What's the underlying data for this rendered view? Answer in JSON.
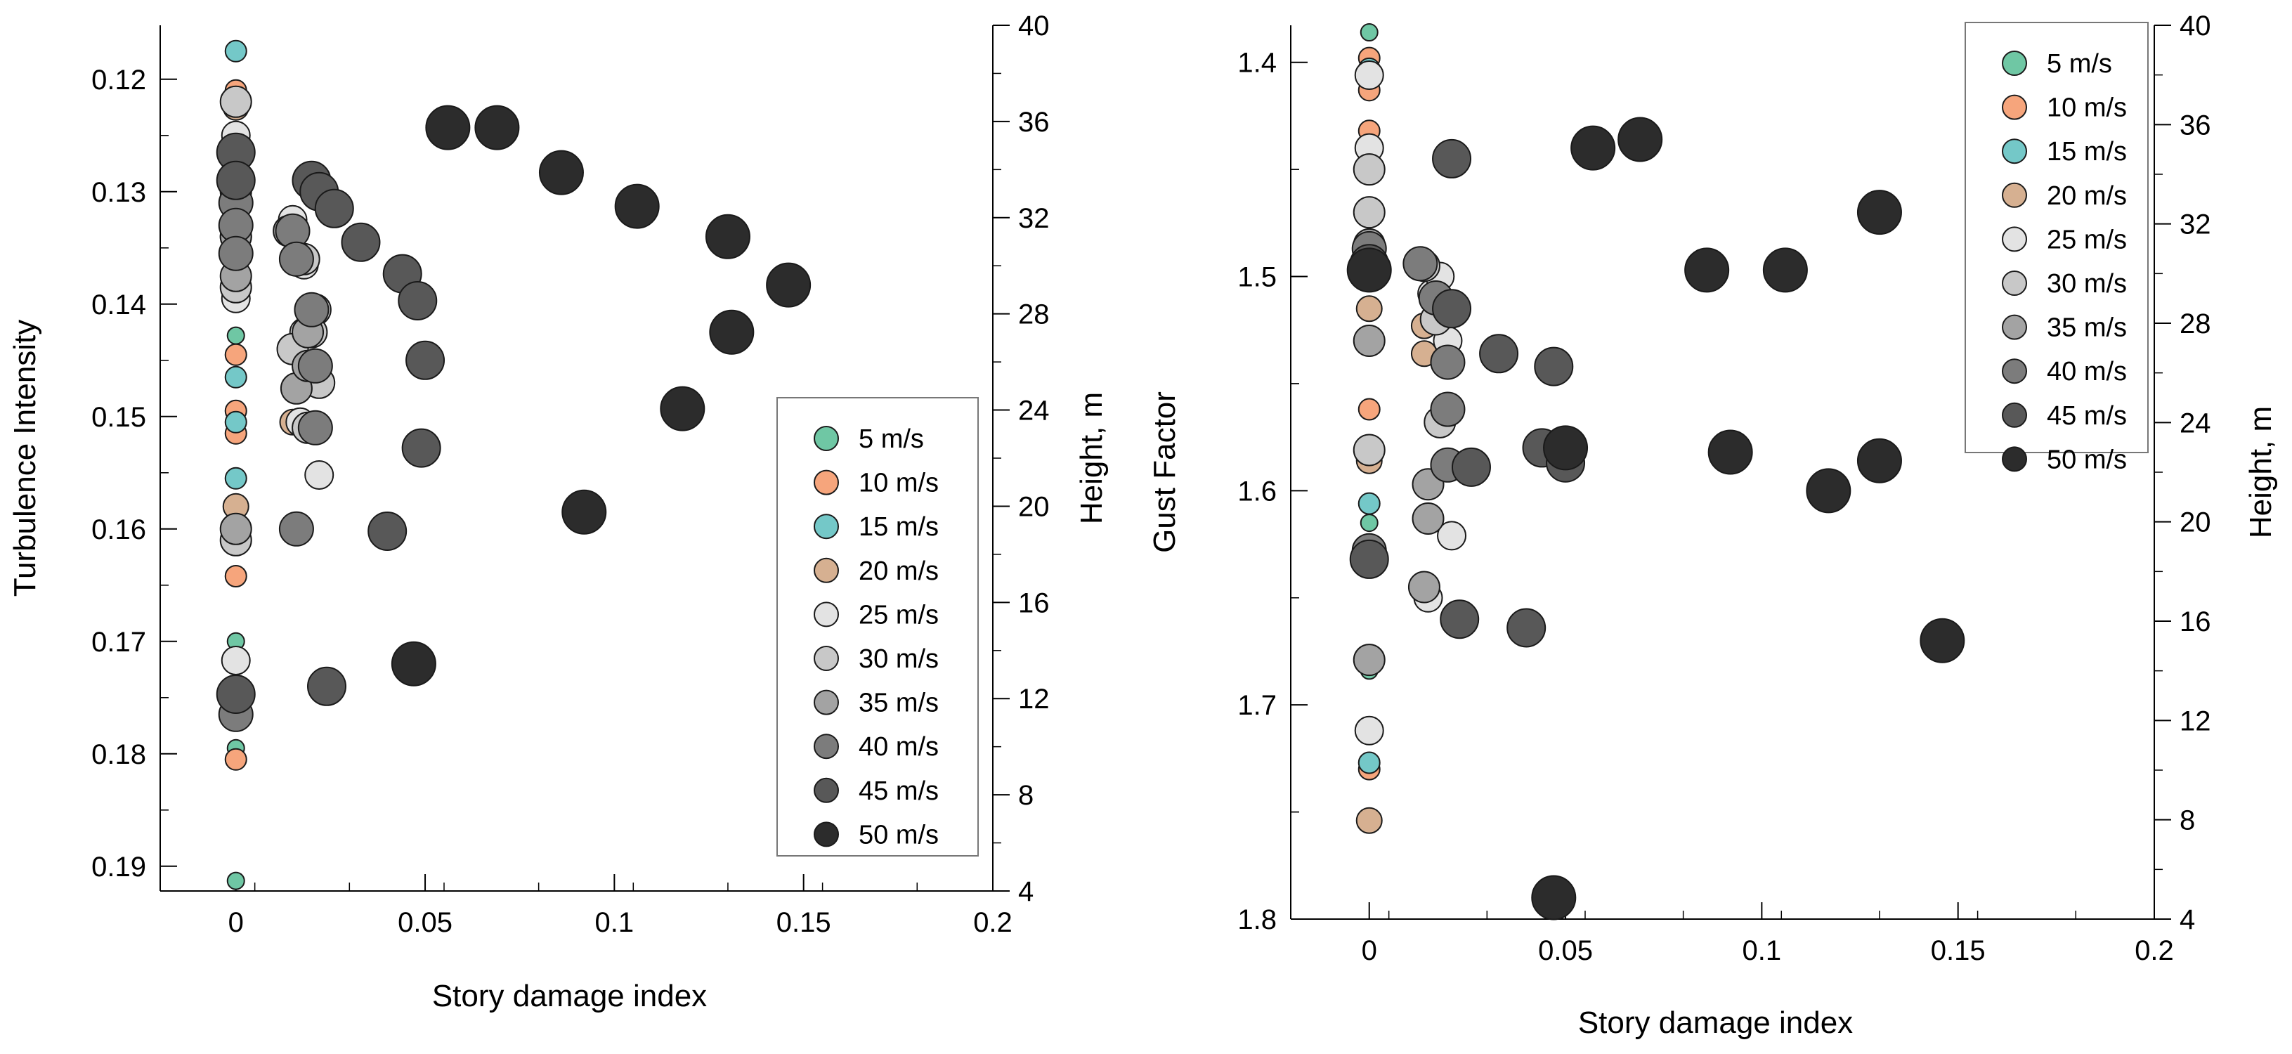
{
  "figure": {
    "panels": 2
  },
  "legend_series": [
    {
      "name": "5 m/s",
      "color": "#6fc7a4"
    },
    {
      "name": "10 m/s",
      "color": "#f6a57c"
    },
    {
      "name": "15 m/s",
      "color": "#74c8c8"
    },
    {
      "name": "20 m/s",
      "color": "#d6b091"
    },
    {
      "name": "25 m/s",
      "color": "#e3e3e3"
    },
    {
      "name": "30 m/s",
      "color": "#c8c8c8"
    },
    {
      "name": "35 m/s",
      "color": "#a3a3a3"
    },
    {
      "name": "40 m/s",
      "color": "#7c7c7c"
    },
    {
      "name": "45 m/s",
      "color": "#585858"
    },
    {
      "name": "50 m/s",
      "color": "#2c2c2c"
    }
  ],
  "chart_data": [
    {
      "type": "scatter",
      "title": "",
      "xlabel": "Story damage index",
      "ylabel": "Turbulence Intensity",
      "y2label": "Height, m",
      "xlim": [
        -0.02,
        0.2
      ],
      "ylim": [
        0.1152,
        0.1922
      ],
      "y_inverted": true,
      "y2lim": [
        4,
        40
      ],
      "xticks": [
        0,
        0.05,
        0.1,
        0.15,
        0.2
      ],
      "xtick_labels": [
        "0",
        "0.05",
        "0.1",
        "0.15",
        "0.2"
      ],
      "yticks": [
        0.12,
        0.13,
        0.14,
        0.15,
        0.16,
        0.17,
        0.18,
        0.19
      ],
      "ytick_labels": [
        "0.12",
        "0.13",
        "0.14",
        "0.15",
        "0.16",
        "0.17",
        "0.18",
        "0.19"
      ],
      "y2ticks": [
        4,
        8,
        12,
        16,
        20,
        24,
        28,
        32,
        36,
        40
      ],
      "y2tick_labels": [
        "4",
        "8",
        "12",
        "16",
        "20",
        "24",
        "28",
        "32",
        "36",
        "40"
      ],
      "legend_position": "lower-right",
      "series": [
        {
          "name": "5 m/s",
          "x": [
            0,
            0,
            0,
            0,
            0,
            0
          ],
          "y": [
            0.1175,
            0.1428,
            0.15,
            0.17,
            0.1795,
            0.1913
          ]
        },
        {
          "name": "10 m/s",
          "x": [
            0,
            0,
            0,
            0,
            0,
            0,
            0
          ],
          "y": [
            0.121,
            0.1445,
            0.1495,
            0.1515,
            0.158,
            0.1642,
            0.1805
          ]
        },
        {
          "name": "15 m/s",
          "x": [
            0,
            0,
            0,
            0,
            0,
            0
          ],
          "y": [
            0.1175,
            0.125,
            0.1465,
            0.1505,
            0.1555,
            0.1605
          ]
        },
        {
          "name": "20 m/s",
          "x": [
            0,
            0,
            0,
            0,
            0.015,
            0
          ],
          "y": [
            0.1225,
            0.134,
            0.137,
            0.158,
            0.1505,
            0.1755
          ]
        },
        {
          "name": "25 m/s",
          "x": [
            0,
            0,
            0,
            0,
            0.015,
            0.015,
            0.018,
            0.021,
            0.018,
            0.022,
            0.017,
            0
          ],
          "y": [
            0.122,
            0.125,
            0.13,
            0.1395,
            0.1325,
            0.144,
            0.1365,
            0.1405,
            0.1425,
            0.1552,
            0.1505,
            0.1717
          ]
        },
        {
          "name": "30 m/s",
          "x": [
            0,
            0,
            0,
            0,
            0.015,
            0.018,
            0.022,
            0.021,
            0.02,
            0.019,
            0
          ],
          "y": [
            0.122,
            0.129,
            0.134,
            0.1385,
            0.144,
            0.136,
            0.147,
            0.1405,
            0.1425,
            0.151,
            0.161
          ]
        },
        {
          "name": "35 m/s",
          "x": [
            0,
            0,
            0,
            0.014,
            0.016,
            0.016,
            0.019,
            0.019,
            0
          ],
          "y": [
            0.13,
            0.134,
            0.1375,
            0.1335,
            0.136,
            0.1475,
            0.1455,
            0.1425,
            0.16
          ]
        },
        {
          "name": "40 m/s",
          "x": [
            0,
            0,
            0,
            0,
            0.015,
            0.016,
            0.02,
            0.021,
            0.021,
            0.016,
            0
          ],
          "y": [
            0.1265,
            0.131,
            0.133,
            0.1355,
            0.1335,
            0.136,
            0.1405,
            0.1455,
            0.151,
            0.16,
            0.1765
          ]
        },
        {
          "name": "45 m/s",
          "x": [
            0,
            0,
            0.02,
            0.022,
            0.026,
            0.033,
            0.044,
            0.048,
            0.05,
            0.049,
            0.04,
            0.024,
            0
          ],
          "y": [
            0.1265,
            0.129,
            0.129,
            0.13,
            0.1315,
            0.1345,
            0.1373,
            0.1397,
            0.145,
            0.1528,
            0.1602,
            0.174,
            0.1747
          ]
        },
        {
          "name": "50 m/s",
          "x": [
            0.056,
            0.069,
            0.086,
            0.106,
            0.13,
            0.146,
            0.131,
            0.118,
            0.092,
            0.047
          ],
          "y": [
            0.1243,
            0.1243,
            0.1283,
            0.1313,
            0.134,
            0.1383,
            0.1425,
            0.1493,
            0.1585,
            0.172
          ]
        }
      ]
    },
    {
      "type": "scatter",
      "title": "",
      "xlabel": "Story damage index",
      "ylabel": "Gust Factor",
      "y2label": "Height, m",
      "xlim": [
        -0.02,
        0.2
      ],
      "ylim": [
        1.3827,
        1.8
      ],
      "y_inverted": true,
      "y2lim": [
        4,
        40
      ],
      "xticks": [
        0,
        0.05,
        0.1,
        0.15,
        0.2
      ],
      "xtick_labels": [
        "0",
        "0.05",
        "0.1",
        "0.15",
        "0.2"
      ],
      "yticks": [
        1.4,
        1.5,
        1.6,
        1.7,
        1.8
      ],
      "ytick_labels": [
        "1.4",
        "1.5",
        "1.6",
        "1.7",
        "1.8"
      ],
      "y2ticks": [
        4,
        8,
        12,
        16,
        20,
        24,
        28,
        32,
        36,
        40
      ],
      "y2tick_labels": [
        "4",
        "8",
        "12",
        "16",
        "20",
        "24",
        "28",
        "32",
        "36",
        "40"
      ],
      "legend_position": "top-right",
      "series": [
        {
          "name": "5 m/s",
          "x": [
            0,
            0,
            0,
            0
          ],
          "y": [
            1.386,
            1.44,
            1.615,
            1.684
          ]
        },
        {
          "name": "10 m/s",
          "x": [
            0,
            0,
            0,
            0,
            0,
            0
          ],
          "y": [
            1.398,
            1.413,
            1.432,
            1.468,
            1.562,
            1.73
          ]
        },
        {
          "name": "15 m/s",
          "x": [
            0,
            0,
            0,
            0
          ],
          "y": [
            1.403,
            1.451,
            1.606,
            1.727
          ]
        },
        {
          "name": "20 m/s",
          "x": [
            0,
            0,
            0.014,
            0.014,
            0,
            0
          ],
          "y": [
            1.47,
            1.515,
            1.523,
            1.536,
            1.586,
            1.754
          ]
        },
        {
          "name": "25 m/s",
          "x": [
            0,
            0,
            0.016,
            0.018,
            0.02,
            0.021,
            0.015,
            0
          ],
          "y": [
            1.406,
            1.44,
            1.508,
            1.5,
            1.53,
            1.621,
            1.65,
            1.712
          ]
        },
        {
          "name": "30 m/s",
          "x": [
            0,
            0,
            0.014,
            0.017,
            0.02,
            0.018,
            0
          ],
          "y": [
            1.45,
            1.47,
            1.495,
            1.52,
            1.515,
            1.568,
            1.581
          ]
        },
        {
          "name": "35 m/s",
          "x": [
            0,
            0,
            0.015,
            0.015,
            0.014,
            0
          ],
          "y": [
            1.485,
            1.53,
            1.597,
            1.613,
            1.645,
            1.679
          ]
        },
        {
          "name": "40 m/s",
          "x": [
            0,
            0,
            0.013,
            0.017,
            0.02,
            0.02,
            0.02,
            0
          ],
          "y": [
            1.487,
            1.498,
            1.494,
            1.51,
            1.54,
            1.562,
            1.588,
            1.628
          ]
        },
        {
          "name": "45 m/s",
          "x": [
            0,
            0.021,
            0.021,
            0.033,
            0.047,
            0.044,
            0.05,
            0.026,
            0.023,
            0.04,
            0
          ],
          "y": [
            1.494,
            1.445,
            1.515,
            1.536,
            1.542,
            1.58,
            1.587,
            1.589,
            1.66,
            1.664,
            1.632
          ]
        },
        {
          "name": "50 m/s",
          "x": [
            0,
            0.057,
            0.069,
            0.086,
            0.106,
            0.13,
            0.092,
            0.05,
            0.117,
            0.13,
            0.146,
            0.047
          ],
          "y": [
            1.497,
            1.44,
            1.436,
            1.497,
            1.497,
            1.47,
            1.582,
            1.58,
            1.6,
            1.586,
            1.67,
            1.79
          ]
        }
      ]
    }
  ]
}
